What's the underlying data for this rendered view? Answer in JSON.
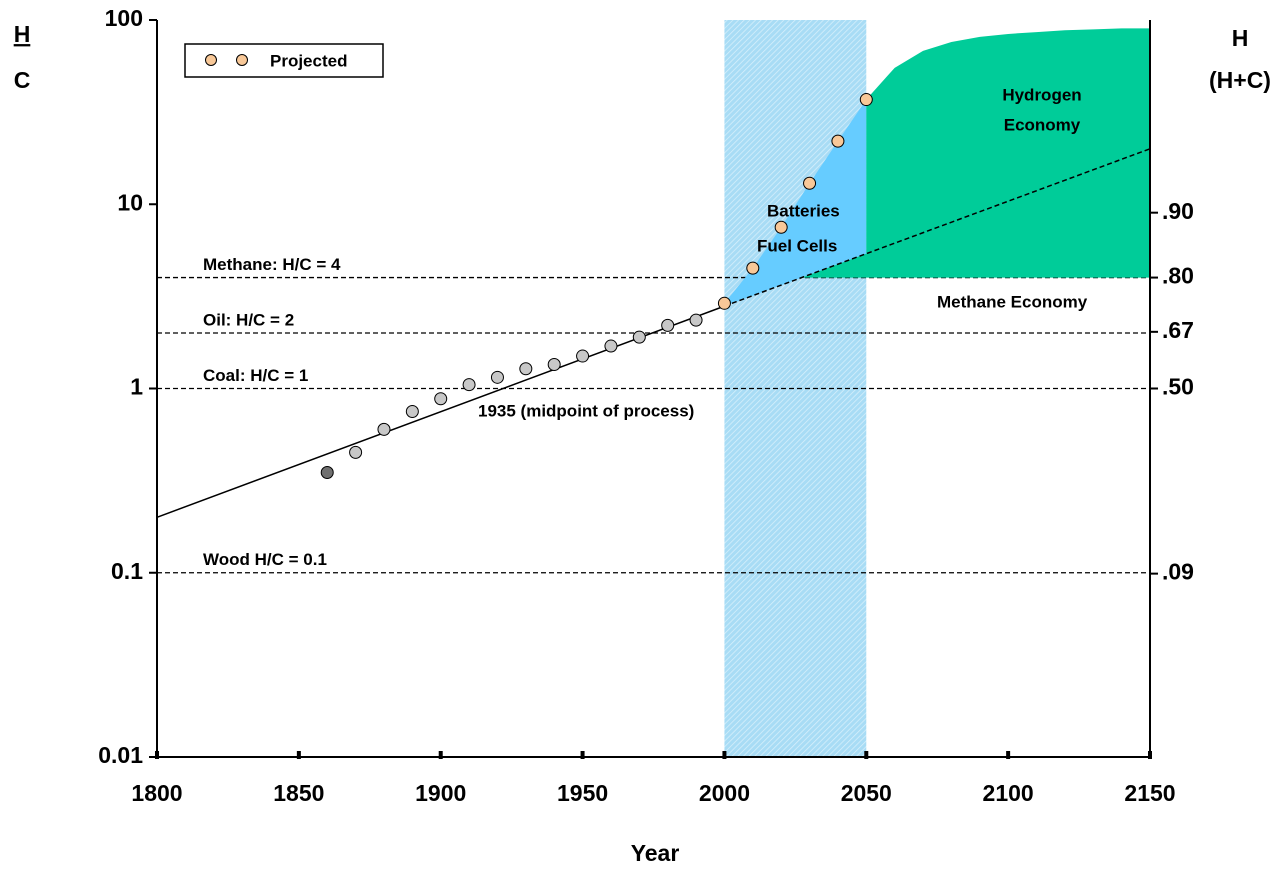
{
  "chart_data": {
    "type": "scatter",
    "x_label": "Year",
    "y_label": [
      "H",
      "C"
    ],
    "y2_label": [
      "H",
      "(H+C)"
    ],
    "log_y": true,
    "xlim": [
      1800,
      2150
    ],
    "xticks": [
      1800,
      1850,
      1900,
      1950,
      2000,
      2050,
      2100,
      2150
    ],
    "ylim": [
      0.01,
      100
    ],
    "yticks": [
      0.01,
      0.1,
      1,
      10,
      100
    ],
    "y2ticks": [
      {
        "value": 0.9,
        "label": ".90"
      },
      {
        "value": 0.8,
        "label": ".80"
      },
      {
        "value": 0.67,
        "label": ".67"
      },
      {
        "value": 0.5,
        "label": ".50"
      },
      {
        "value": 0.09,
        "label": ".09"
      }
    ],
    "legend": "upper left",
    "series": [
      {
        "color": "#c8c8c8",
        "colors": [
          "#707070",
          "#c8c8c8",
          "#c8c8c8",
          "#c8c8c8",
          "#c8c8c8",
          "#c8c8c8",
          "#c8c8c8",
          "#c8c8c8",
          "#c8c8c8",
          "#c8c8c8",
          "#c8c8c8",
          "#c8c8c8",
          "#c8c8c8",
          "#c8c8c8"
        ],
        "x": [
          1860,
          1870,
          1880,
          1890,
          1900,
          1910,
          1920,
          1930,
          1940,
          1950,
          1960,
          1970,
          1980,
          1990
        ],
        "values": [
          0.35,
          0.45,
          0.6,
          0.75,
          0.88,
          1.05,
          1.15,
          1.28,
          1.35,
          1.5,
          1.7,
          1.9,
          2.2,
          2.35
        ]
      },
      {
        "name": "Projected",
        "color": "#f8c898",
        "x": [
          2000,
          2010,
          2020,
          2030,
          2040,
          2050
        ],
        "values": [
          2.9,
          4.5,
          7.5,
          13,
          22,
          37
        ]
      }
    ],
    "lines": [
      {
        "style": "solid",
        "x": [
          1800,
          2000
        ],
        "values": [
          0.2,
          2.8
        ]
      },
      {
        "style": "dashed",
        "x": [
          2000,
          2150
        ],
        "values": [
          2.8,
          20
        ]
      }
    ],
    "reference_lines": [
      {
        "value": 4,
        "label": "Methane: H/C = 4"
      },
      {
        "value": 2,
        "label": "Oil: H/C = 2"
      },
      {
        "value": 1,
        "label": "Coal: H/C = 1"
      },
      {
        "value": 0.1,
        "label": "Wood H/C = 0.1"
      }
    ],
    "band": {
      "x": [
        2000,
        2050
      ],
      "color": "#a8dcf5"
    },
    "blue_area_color": "#66ccff",
    "green_area": {
      "color": "#00cc99",
      "x": [
        2050,
        2060,
        2070,
        2080,
        2090,
        2100,
        2110,
        2120,
        2130,
        2140,
        2150
      ],
      "values": [
        37,
        55,
        68,
        76,
        81,
        84,
        86,
        88,
        89,
        90,
        90
      ]
    },
    "annotations": {
      "midpoint": "1935 (midpoint of process)",
      "batteries": "Batteries",
      "fuel_cells": "Fuel Cells",
      "hydrogen": [
        "Hydrogen",
        "Economy"
      ],
      "methane": "Methane Economy"
    }
  }
}
